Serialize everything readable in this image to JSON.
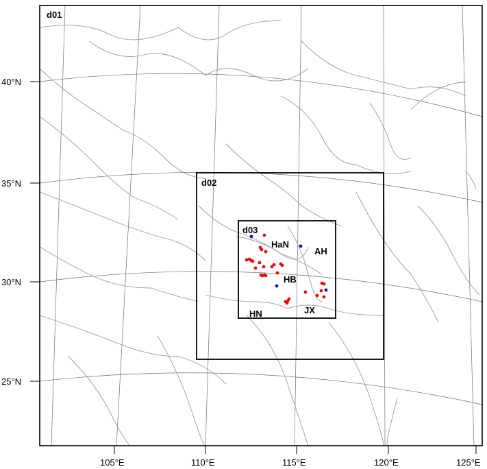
{
  "map": {
    "domains": [
      {
        "id": "d01",
        "label": "d01"
      },
      {
        "id": "d02",
        "label": "d02"
      },
      {
        "id": "d03",
        "label": "d03"
      }
    ],
    "regions": [
      {
        "id": "HaN",
        "label": "HaN"
      },
      {
        "id": "AH",
        "label": "AH"
      },
      {
        "id": "HB",
        "label": "HB"
      },
      {
        "id": "HN",
        "label": "HN"
      },
      {
        "id": "JX",
        "label": "JX"
      }
    ],
    "lat_ticks": [
      "40°N",
      "35°N",
      "30°N",
      "25°N"
    ],
    "lon_ticks": [
      "105°E",
      "110°E",
      "115°E",
      "120°E",
      "125°E"
    ],
    "site_colors": {
      "red": "#dd1111",
      "blue": "#1a1a9a"
    },
    "sites_red_count": 30,
    "sites_blue_count": 4
  }
}
